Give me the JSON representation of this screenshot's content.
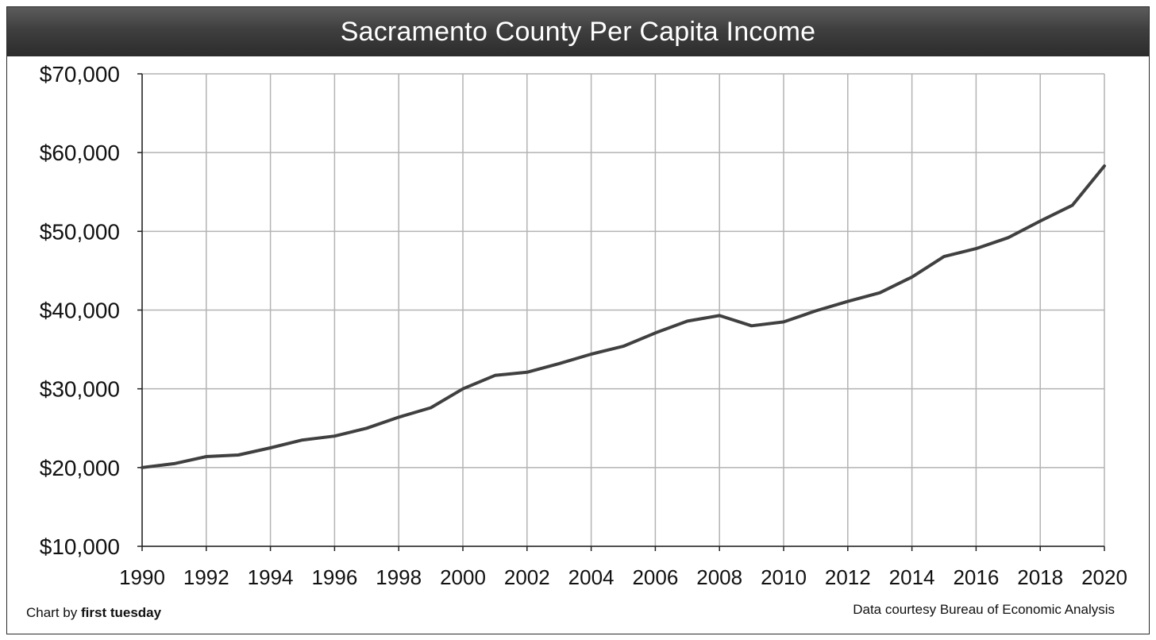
{
  "chart_data": {
    "type": "line",
    "title": "Sacramento County Per Capita Income",
    "xlabel": "",
    "ylabel": "",
    "x": [
      1990,
      1991,
      1992,
      1993,
      1994,
      1995,
      1996,
      1997,
      1998,
      1999,
      2000,
      2001,
      2002,
      2003,
      2004,
      2005,
      2006,
      2007,
      2008,
      2009,
      2010,
      2011,
      2012,
      2013,
      2014,
      2015,
      2016,
      2017,
      2018,
      2019,
      2020
    ],
    "series": [
      {
        "name": "Per Capita Income",
        "color": "#404040",
        "values": [
          20000,
          20500,
          21400,
          21600,
          22500,
          23500,
          24000,
          25000,
          26400,
          27600,
          30000,
          31700,
          32100,
          33200,
          34400,
          35400,
          37100,
          38600,
          39300,
          38000,
          38500,
          39900,
          41100,
          42200,
          44200,
          46800,
          47800,
          49200,
          51300,
          53300,
          58300
        ]
      }
    ],
    "xlim": [
      1990,
      2020
    ],
    "ylim": [
      10000,
      70000
    ],
    "x_ticks": [
      "1990",
      "1992",
      "1994",
      "1996",
      "1998",
      "2000",
      "2002",
      "2004",
      "2006",
      "2008",
      "2010",
      "2012",
      "2014",
      "2016",
      "2018",
      "2020"
    ],
    "y_ticks": [
      "$10,000",
      "$20,000",
      "$30,000",
      "$40,000",
      "$50,000",
      "$60,000",
      "$70,000"
    ],
    "grid": true
  },
  "credits": {
    "chart_by_prefix": "Chart by ",
    "chart_by_name": "first tuesday",
    "data_source": "Data courtesy Bureau of Economic Analysis"
  }
}
